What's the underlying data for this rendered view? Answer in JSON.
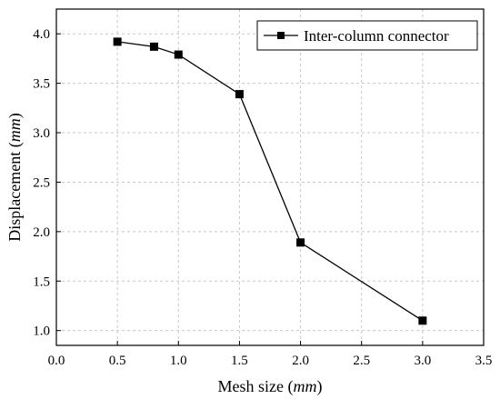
{
  "chart_data": {
    "type": "line",
    "xlabel": "Mesh size",
    "xlabel_unit": "mm",
    "ylabel": "Displacement",
    "ylabel_unit": "mm",
    "xlim": [
      0.0,
      3.5
    ],
    "ylim": [
      0.85,
      4.25
    ],
    "x_ticks": [
      "0.0",
      "0.5",
      "1.0",
      "1.5",
      "2.0",
      "2.5",
      "3.0",
      "3.5"
    ],
    "y_ticks": [
      "1.0",
      "1.5",
      "2.0",
      "2.5",
      "3.0",
      "3.5",
      "4.0"
    ],
    "grid": true,
    "legend_position": "top-right",
    "series": [
      {
        "name": "Inter-column connector",
        "marker": "square",
        "color": "#000000",
        "x": [
          0.5,
          0.8,
          1.0,
          1.5,
          2.0,
          3.0
        ],
        "y": [
          3.92,
          3.87,
          3.79,
          3.39,
          1.89,
          1.1
        ]
      }
    ]
  }
}
